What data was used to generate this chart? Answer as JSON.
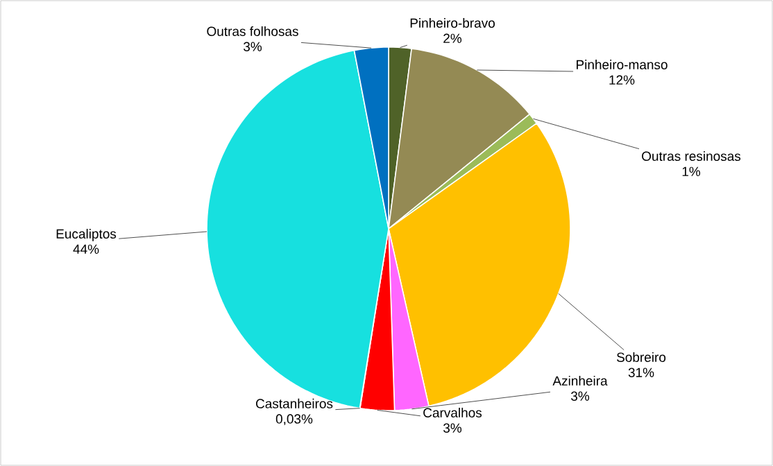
{
  "chart_data": {
    "type": "pie",
    "categories": [
      "Pinheiro-bravo",
      "Pinheiro-manso",
      "Outras resinosas",
      "Sobreiro",
      "Azinheira",
      "Carvalhos",
      "Castanheiros",
      "Eucaliptos",
      "Outras folhosas"
    ],
    "values": [
      2,
      12,
      1,
      31,
      3,
      3,
      0.03,
      44,
      3
    ],
    "value_labels": [
      "2%",
      "12%",
      "1%",
      "31%",
      "3%",
      "3%",
      "0,03%",
      "44%",
      "3%"
    ],
    "colors": [
      "#4f6228",
      "#948a54",
      "#9bbb59",
      "#ffc000",
      "#ff66ff",
      "#ff0000",
      "#8db3e2",
      "#17e0df",
      "#0070c0"
    ]
  }
}
